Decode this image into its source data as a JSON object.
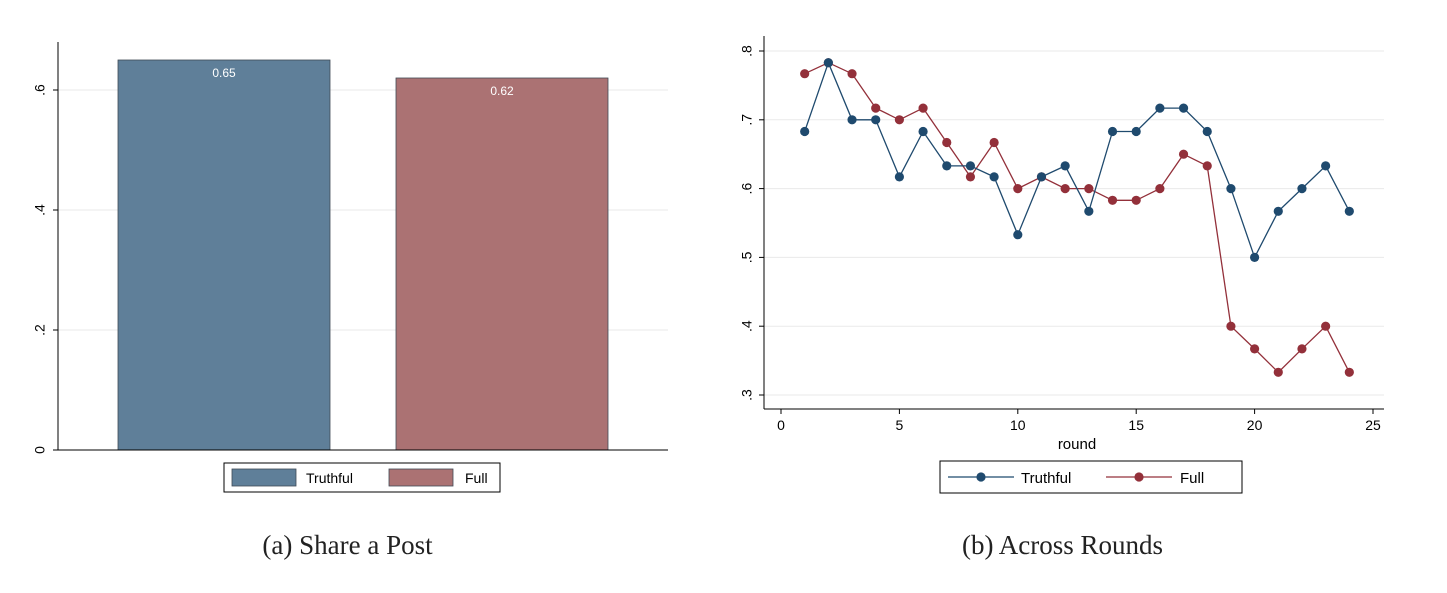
{
  "chart_data": [
    {
      "type": "bar",
      "caption": "(a) Share a Post",
      "series": [
        {
          "name": "Truthful",
          "value": 0.65,
          "label": "0.65",
          "color": "#5f7f99"
        },
        {
          "name": "Full",
          "value": 0.62,
          "label": "0.62",
          "color": "#ab7273"
        }
      ],
      "ylim": [
        0,
        0.68
      ],
      "yticks": [
        0,
        0.2,
        0.4,
        0.6
      ],
      "ytick_labels": [
        "0",
        ".2",
        ".4",
        ".6"
      ],
      "grid": true,
      "legend": "bottom"
    },
    {
      "type": "line",
      "caption": "(b) Across Rounds",
      "xlabel": "round",
      "x": [
        1,
        2,
        3,
        4,
        5,
        6,
        7,
        8,
        9,
        10,
        11,
        12,
        13,
        14,
        15,
        16,
        17,
        18,
        19,
        20,
        21,
        22,
        23,
        24
      ],
      "series": [
        {
          "name": "Truthful",
          "color": "#1f4a6e",
          "values": [
            0.683,
            0.783,
            0.7,
            0.7,
            0.617,
            0.683,
            0.633,
            0.633,
            0.617,
            0.533,
            0.617,
            0.633,
            0.567,
            0.683,
            0.683,
            0.717,
            0.717,
            0.683,
            0.6,
            0.5,
            0.567,
            0.6,
            0.633,
            0.567
          ]
        },
        {
          "name": "Full",
          "color": "#93303a",
          "values": [
            0.767,
            0.783,
            0.767,
            0.717,
            0.7,
            0.717,
            0.667,
            0.617,
            0.667,
            0.6,
            0.617,
            0.6,
            0.6,
            0.583,
            0.583,
            0.6,
            0.65,
            0.633,
            0.4,
            0.367,
            0.333,
            0.367,
            0.4,
            0.333
          ]
        }
      ],
      "xlim": [
        0,
        25
      ],
      "ylim": [
        0.3,
        0.8
      ],
      "xticks": [
        0,
        5,
        10,
        15,
        20,
        25
      ],
      "xtick_labels": [
        "0",
        "5",
        "10",
        "15",
        "20",
        "25"
      ],
      "yticks": [
        0.3,
        0.4,
        0.5,
        0.6,
        0.7,
        0.8
      ],
      "ytick_labels": [
        ".3",
        ".4",
        ".5",
        ".6",
        ".7",
        ".8"
      ],
      "grid": true,
      "legend": "bottom"
    }
  ]
}
